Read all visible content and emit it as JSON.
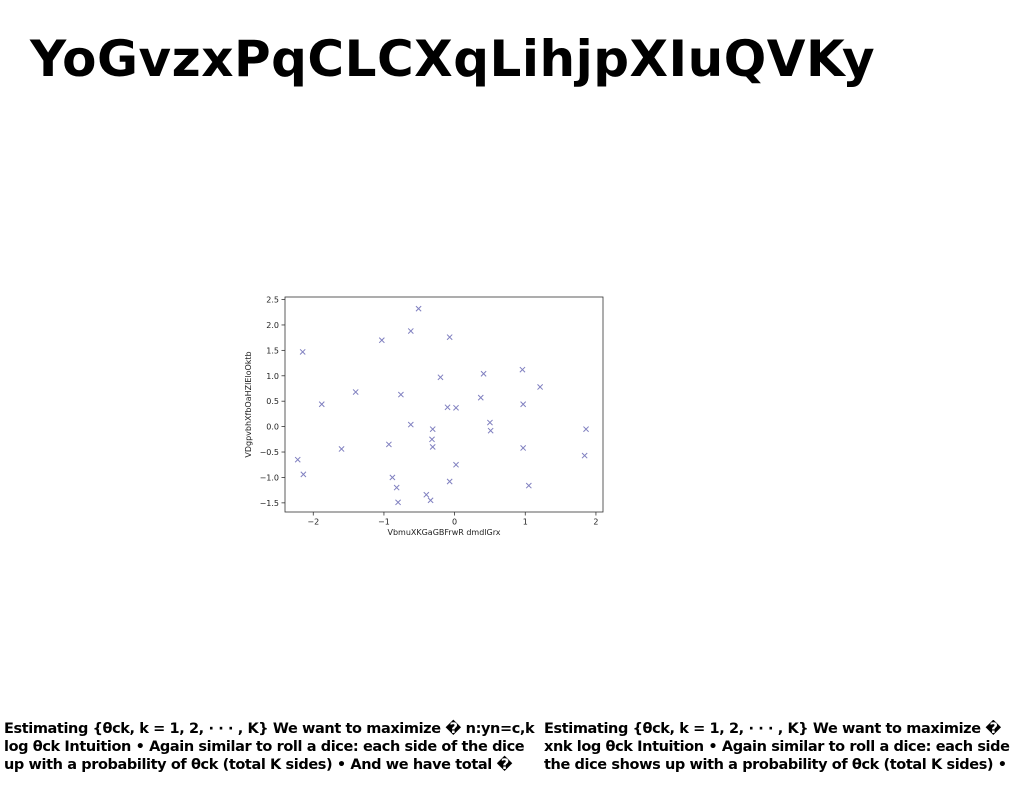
{
  "title": "YoGvzxPqCLCXqLihjpXIuQVKy",
  "captions": {
    "left": "Estimating {θck, k = 1, 2, · · · , K} We want to maximize � n:yn=c,k\nlog θck Intuition • Again similar to roll a dice: each side of the dice\nup with a probability of θck (total K sides) • And we have total �",
    "right": "Estimating {θck, k = 1, 2, · · · , K} We want to maximize �\nxnk log θck Intuition • Again similar to roll a dice: each side\nthe dice shows up with a probability of θck (total K sides) •"
  },
  "chart_data": {
    "type": "scatter",
    "title": "",
    "xlabel": "VbmuXKGaGBFrwR dmdlGrx",
    "ylabel": "VDgpvbhXfbOaHZlEloOktb",
    "xlim": [
      -2.4,
      2.1
    ],
    "ylim": [
      -1.68,
      2.55
    ],
    "xticks": [
      -2,
      -1,
      0,
      1,
      2
    ],
    "xtick_labels": [
      "−2",
      "−1",
      "0",
      "1",
      "2"
    ],
    "yticks": [
      -1.5,
      -1.0,
      -0.5,
      0.0,
      0.5,
      1.0,
      1.5,
      2.0,
      2.5
    ],
    "ytick_labels": [
      "−1.5",
      "−1.0",
      "−0.5",
      "0.0",
      "0.5",
      "1.0",
      "1.5",
      "2.0",
      "2.5"
    ],
    "marker": "x",
    "marker_color": "#8080c0",
    "grid": false,
    "points": [
      {
        "x": -2.22,
        "y": -0.65
      },
      {
        "x": -2.15,
        "y": 1.47
      },
      {
        "x": -2.14,
        "y": -0.94
      },
      {
        "x": -1.88,
        "y": 0.44
      },
      {
        "x": -1.6,
        "y": -0.44
      },
      {
        "x": -1.4,
        "y": 0.68
      },
      {
        "x": -1.03,
        "y": 1.7
      },
      {
        "x": -0.93,
        "y": -0.35
      },
      {
        "x": -0.88,
        "y": -1.0
      },
      {
        "x": -0.82,
        "y": -1.2
      },
      {
        "x": -0.8,
        "y": -1.49
      },
      {
        "x": -0.76,
        "y": 0.63
      },
      {
        "x": -0.62,
        "y": 1.88
      },
      {
        "x": -0.62,
        "y": 0.04
      },
      {
        "x": -0.51,
        "y": 2.32
      },
      {
        "x": -0.4,
        "y": -1.34
      },
      {
        "x": -0.34,
        "y": -1.45
      },
      {
        "x": -0.31,
        "y": -0.05
      },
      {
        "x": -0.32,
        "y": -0.25
      },
      {
        "x": -0.31,
        "y": -0.4
      },
      {
        "x": -0.2,
        "y": 0.97
      },
      {
        "x": -0.1,
        "y": 0.38
      },
      {
        "x": -0.07,
        "y": 1.76
      },
      {
        "x": -0.07,
        "y": -1.08
      },
      {
        "x": 0.02,
        "y": -0.75
      },
      {
        "x": 0.02,
        "y": 0.37
      },
      {
        "x": 0.37,
        "y": 0.57
      },
      {
        "x": 0.41,
        "y": 1.04
      },
      {
        "x": 0.5,
        "y": 0.08
      },
      {
        "x": 0.51,
        "y": -0.08
      },
      {
        "x": 0.96,
        "y": 1.12
      },
      {
        "x": 0.97,
        "y": 0.44
      },
      {
        "x": 0.97,
        "y": -0.42
      },
      {
        "x": 1.05,
        "y": -1.16
      },
      {
        "x": 1.21,
        "y": 0.78
      },
      {
        "x": 1.84,
        "y": -0.57
      },
      {
        "x": 1.86,
        "y": -0.05
      }
    ]
  }
}
